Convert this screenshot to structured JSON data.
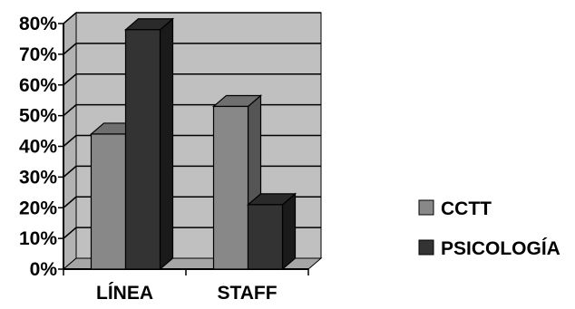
{
  "chart_data": {
    "type": "bar",
    "style": "3d-clustered-column",
    "categories": [
      "LÍNEA",
      "STAFF"
    ],
    "series": [
      {
        "name": "CCTT",
        "values": [
          44,
          53
        ],
        "color": "#888888",
        "side_color": "#555555",
        "top_color": "#6f6f6f"
      },
      {
        "name": "PSICOLOGÍA",
        "values": [
          78,
          21
        ],
        "color": "#333333",
        "side_color": "#1a1a1a",
        "top_color": "#2a2a2a"
      }
    ],
    "y_ticks": [
      "0%",
      "10%",
      "20%",
      "30%",
      "40%",
      "50%",
      "60%",
      "70%",
      "80%"
    ],
    "ylim": [
      0,
      80
    ],
    "y_unit": "%",
    "grid": true,
    "legend_position": "right",
    "wall_color": "#c0c0c0",
    "floor_color": "#a6a6a6",
    "grid_color": "#000000"
  }
}
